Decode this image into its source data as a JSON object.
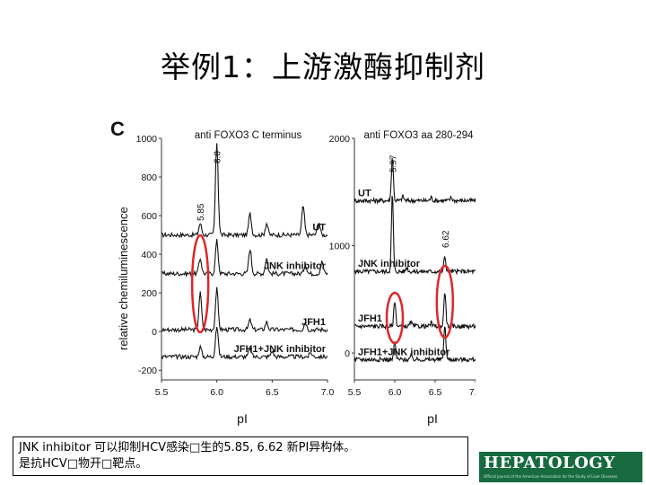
{
  "slide": {
    "title": "举例1：上游激酶抑制剂",
    "caption_line1": "JNK inhibitor 可以抑制HCV感染□生的5.85, 6.62 新PI异构体。",
    "caption_line2": "是抗HCV□物开□靶点。",
    "logo": "HEPATOLOGY",
    "logo_tagline": "Official Journal of the American Association for the Study of Liver Diseases"
  },
  "figure": {
    "panel_label": "C",
    "ylabel": "relative chemiluminescence",
    "xlabel": "pI",
    "colors": {
      "trace": "#111111",
      "highlight": "#e0262a"
    }
  },
  "chart_data": [
    {
      "type": "line",
      "title": "anti FOXO3 C terminus",
      "xlabel": "pI",
      "ylabel": "relative chemiluminescence",
      "xlim": [
        5.5,
        7.0
      ],
      "ylim": [
        -250,
        1000
      ],
      "x_ticks": [
        "5.5",
        "6.0",
        "6.5",
        "7.0"
      ],
      "y_ticks": [
        "1000",
        "800",
        "600",
        "400",
        "200",
        "0",
        "-200"
      ],
      "peak_annotations": [
        {
          "x": 6.0,
          "label": "6.0"
        },
        {
          "x": 5.85,
          "label": "5.85"
        }
      ],
      "highlight_x": 5.85,
      "series": [
        {
          "name": "UT",
          "baseline": 500,
          "peaks": [
            [
              6.0,
              480
            ],
            [
              5.85,
              60
            ],
            [
              6.3,
              110
            ],
            [
              6.45,
              60
            ],
            [
              6.78,
              150
            ],
            [
              6.92,
              70
            ]
          ]
        },
        {
          "name": "JNK inhibitor",
          "baseline": 300,
          "peaks": [
            [
              6.0,
              170
            ],
            [
              5.85,
              80
            ],
            [
              6.3,
              130
            ],
            [
              6.45,
              80
            ],
            [
              6.8,
              50
            ],
            [
              6.95,
              60
            ]
          ]
        },
        {
          "name": "JFH1",
          "baseline": 10,
          "peaks": [
            [
              6.0,
              210
            ],
            [
              5.85,
              190
            ],
            [
              6.3,
              50
            ],
            [
              6.45,
              40
            ],
            [
              6.8,
              40
            ]
          ]
        },
        {
          "name": "JFH1+JNK inhibitor",
          "baseline": -130,
          "peaks": [
            [
              6.0,
              160
            ],
            [
              5.85,
              50
            ],
            [
              6.3,
              40
            ],
            [
              6.5,
              30
            ],
            [
              6.85,
              20
            ]
          ]
        }
      ]
    },
    {
      "type": "line",
      "title": "anti FOXO3 aa 280-294",
      "xlabel": "pI",
      "ylim": [
        -250,
        2000
      ],
      "xlim": [
        5.5,
        7.0
      ],
      "x_ticks": [
        "5.5",
        "6.0",
        "6.5",
        "7.0"
      ],
      "y_ticks": [
        "2000",
        "1000",
        "0"
      ],
      "peak_annotations": [
        {
          "x": 5.97,
          "label": "5.97"
        },
        {
          "x": 6.62,
          "label": "6.62"
        }
      ],
      "highlight_x": [
        6.0,
        6.62
      ],
      "series": [
        {
          "name": "UT",
          "baseline": 1420,
          "peaks": [
            [
              5.97,
              410
            ],
            [
              6.1,
              40
            ],
            [
              6.45,
              30
            ],
            [
              6.7,
              30
            ]
          ]
        },
        {
          "name": "JNK inhibitor",
          "baseline": 760,
          "peaks": [
            [
              5.97,
              720
            ],
            [
              6.62,
              140
            ],
            [
              6.15,
              40
            ]
          ]
        },
        {
          "name": "JFH1",
          "baseline": 250,
          "peaks": [
            [
              6.0,
              240
            ],
            [
              6.62,
              330
            ],
            [
              6.2,
              40
            ],
            [
              6.45,
              30
            ]
          ]
        },
        {
          "name": "JFH1+JNK inhibitor",
          "baseline": -60,
          "peaks": [
            [
              6.0,
              160
            ],
            [
              6.62,
              320
            ],
            [
              6.2,
              30
            ]
          ]
        }
      ]
    }
  ]
}
